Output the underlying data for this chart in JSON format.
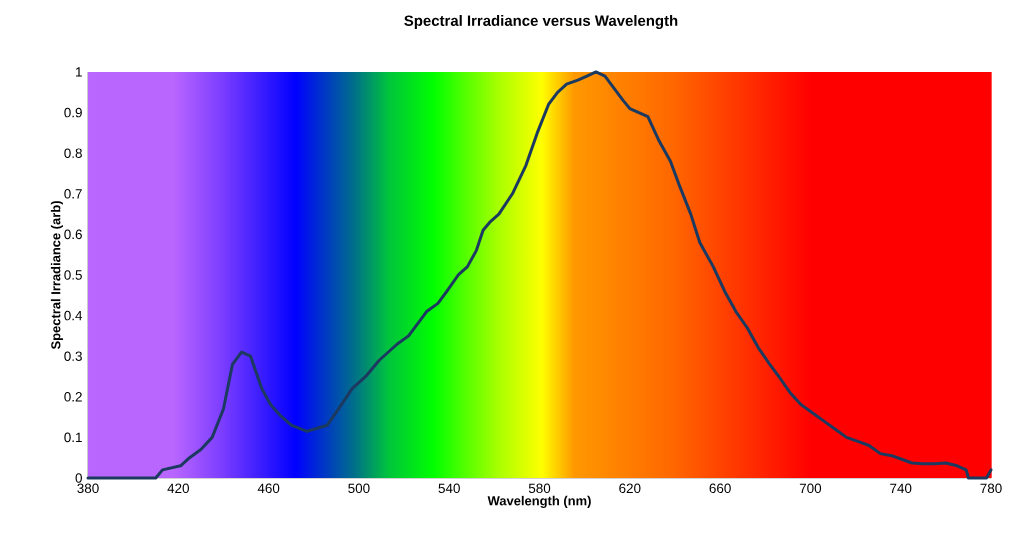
{
  "chart_data": {
    "type": "line",
    "title": "Spectral Irradiance versus Wavelength",
    "xlabel": "Wavelength (nm)",
    "ylabel": "Spectral Irradiance (arb)",
    "xlim": [
      380,
      780
    ],
    "xticks": [
      380,
      420,
      460,
      500,
      540,
      580,
      620,
      660,
      700,
      740,
      780
    ],
    "ylim": [
      0,
      1
    ],
    "yticks": [
      0,
      0.1,
      0.2,
      0.3,
      0.4,
      0.5,
      0.6,
      0.7,
      0.8,
      0.9,
      1
    ],
    "grid": false,
    "marker": "none",
    "line_style": "solid",
    "bands": [
      {
        "axis": "x",
        "from": 380,
        "to": 418,
        "color": "#b966ff"
      },
      {
        "axis": "x",
        "from": 418,
        "to": 440,
        "color": "#b966ff"
      },
      {
        "axis": "x",
        "from": 440,
        "to": 472,
        "color": "#7a3cff"
      },
      {
        "axis": "x",
        "from": 472,
        "to": 500,
        "color": "#0000ff"
      },
      {
        "axis": "x",
        "from": 500,
        "to": 512,
        "color": "#007a80"
      },
      {
        "axis": "x",
        "from": 512,
        "to": 533,
        "color": "#00c040"
      },
      {
        "axis": "x",
        "from": 533,
        "to": 560,
        "color": "#00ff00"
      },
      {
        "axis": "x",
        "from": 560,
        "to": 581,
        "color": "#a0ff00"
      },
      {
        "axis": "x",
        "from": 581,
        "to": 595,
        "color": "#ffff00"
      },
      {
        "axis": "x",
        "from": 595,
        "to": 640,
        "color": "#ff9900"
      },
      {
        "axis": "x",
        "from": 640,
        "to": 700,
        "color": "#ff6600"
      },
      {
        "axis": "x",
        "from": 700,
        "to": 780,
        "color": "#ff0000"
      }
    ],
    "series": [
      {
        "color": "#1c3a60",
        "x": [
          380,
          410,
          413,
          421,
          425,
          430,
          435,
          440,
          444,
          448,
          452,
          457,
          461,
          465,
          470,
          477,
          486,
          491,
          497,
          503,
          509,
          517,
          522,
          530,
          535,
          539,
          544,
          548,
          552,
          555,
          558,
          562,
          568,
          574,
          579,
          584,
          588,
          592,
          597,
          601,
          605,
          609,
          613,
          617,
          620,
          624,
          628,
          633,
          638,
          642,
          647,
          651,
          657,
          662,
          667,
          672,
          677,
          682,
          686,
          691,
          696,
          701,
          706,
          711,
          716,
          721,
          726,
          731,
          736,
          741,
          745,
          750,
          755,
          760,
          765,
          769,
          770,
          778,
          780
        ],
        "values": [
          0,
          0,
          0.02,
          0.03,
          0.05,
          0.07,
          0.1,
          0.17,
          0.28,
          0.31,
          0.3,
          0.22,
          0.18,
          0.155,
          0.13,
          0.115,
          0.13,
          0.17,
          0.22,
          0.25,
          0.29,
          0.33,
          0.35,
          0.41,
          0.43,
          0.46,
          0.5,
          0.52,
          0.56,
          0.61,
          0.63,
          0.65,
          0.7,
          0.77,
          0.85,
          0.92,
          0.95,
          0.97,
          0.98,
          0.99,
          1,
          0.99,
          0.96,
          0.93,
          0.91,
          0.9,
          0.89,
          0.83,
          0.78,
          0.72,
          0.65,
          0.58,
          0.52,
          0.46,
          0.41,
          0.37,
          0.32,
          0.28,
          0.25,
          0.21,
          0.18,
          0.16,
          0.14,
          0.12,
          0.1,
          0.09,
          0.08,
          0.06,
          0.055,
          0.045,
          0.037,
          0.035,
          0.035,
          0.037,
          0.03,
          0.02,
          0,
          0,
          0.02
        ]
      }
    ]
  }
}
